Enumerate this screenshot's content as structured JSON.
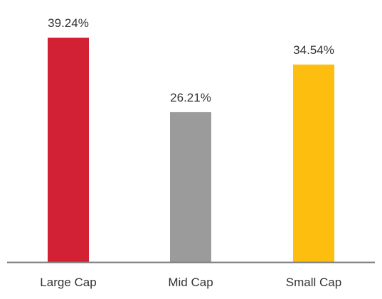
{
  "chart_data": {
    "type": "bar",
    "categories": [
      "Large Cap",
      "Mid Cap",
      "Small Cap"
    ],
    "values": [
      39.24,
      26.21,
      34.54
    ],
    "value_labels": [
      "39.24%",
      "26.21%",
      "34.54%"
    ],
    "colors": [
      "#d22035",
      "#9b9b9b",
      "#fdbe10"
    ],
    "axis_color": "#7f7f7f",
    "ylim": [
      0,
      39.24
    ],
    "grid": false,
    "title": "",
    "xlabel": "",
    "ylabel": ""
  }
}
